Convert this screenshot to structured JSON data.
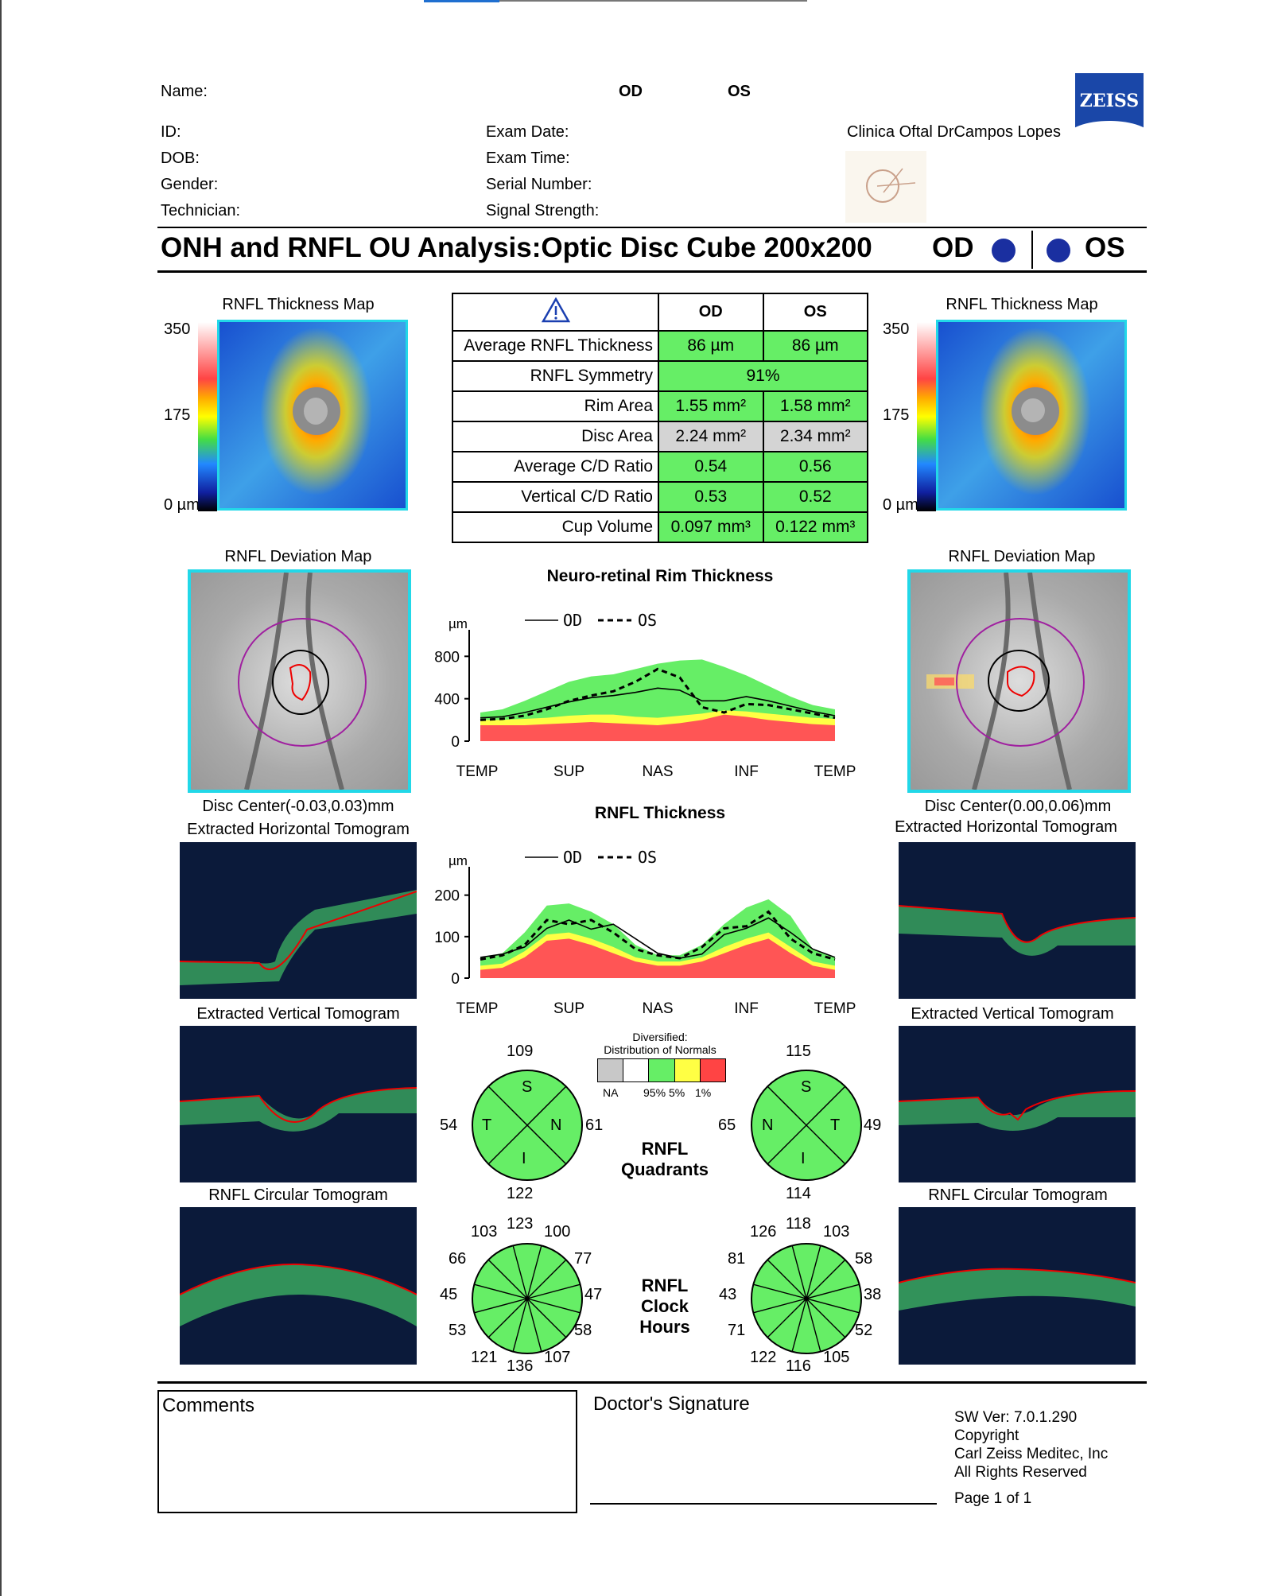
{
  "header": {
    "name_label": "Name:",
    "od_col": "OD",
    "os_col": "OS",
    "id_label": "ID:",
    "dob_label": "DOB:",
    "gender_label": "Gender:",
    "technician_label": "Technician:",
    "exam_date_label": "Exam Date:",
    "exam_time_label": "Exam Time:",
    "serial_label": "Serial Number:",
    "signal_label": "Signal Strength:",
    "clinic": "Clinica Oftal DrCampos Lopes",
    "logo": "ZEISS"
  },
  "title": {
    "text": "ONH and RNFL OU Analysis:Optic Disc Cube 200x200",
    "od": "OD",
    "os": "OS"
  },
  "thickness_map": {
    "title": "RNFL Thickness Map",
    "scale_max": "350",
    "scale_mid": "175",
    "scale_min": "0 µm"
  },
  "summary": {
    "col_od": "OD",
    "col_os": "OS",
    "rows": [
      {
        "label": "Average RNFL Thickness",
        "od": "86 µm",
        "os": "86 µm"
      },
      {
        "label": "RNFL Symmetry",
        "both": "91%"
      },
      {
        "label": "Rim Area",
        "od": "1.55 mm²",
        "os": "1.58 mm²"
      },
      {
        "label": "Disc Area",
        "od": "2.24 mm²",
        "os": "2.34 mm²"
      },
      {
        "label": "Average C/D Ratio",
        "od": "0.54",
        "os": "0.56"
      },
      {
        "label": "Vertical C/D Ratio",
        "od": "0.53",
        "os": "0.52"
      },
      {
        "label": "Cup Volume",
        "od": "0.097 mm³",
        "os": "0.122 mm³"
      }
    ]
  },
  "deviation_map": {
    "title": "RNFL Deviation Map",
    "od_center": "Disc Center(-0.03,0.03)mm",
    "os_center": "Disc Center(0.00,0.06)mm"
  },
  "tomograms": {
    "horizontal": "Extracted Horizontal Tomogram",
    "vertical": "Extracted Vertical Tomogram",
    "circular": "RNFL Circular Tomogram"
  },
  "legend": {
    "od": "OD",
    "os": "OS",
    "unit": "µm"
  },
  "chart_data": [
    {
      "type": "line",
      "title": "Neuro-retinal Rim Thickness",
      "ylabel": "µm",
      "ylim": [
        0,
        900
      ],
      "yticks": [
        0,
        400,
        800
      ],
      "categories": [
        "TEMP",
        "SUP",
        "NAS",
        "INF",
        "TEMP"
      ],
      "x": [
        0,
        1,
        2,
        3,
        4,
        5,
        6,
        7,
        8,
        9,
        10,
        11,
        12,
        13,
        14,
        15,
        16
      ],
      "series": [
        {
          "name": "OD",
          "values": [
            220,
            230,
            270,
            320,
            370,
            410,
            430,
            460,
            500,
            480,
            380,
            380,
            420,
            380,
            330,
            280,
            240
          ]
        },
        {
          "name": "OS",
          "values": [
            200,
            210,
            240,
            300,
            380,
            430,
            470,
            560,
            680,
            600,
            320,
            270,
            350,
            340,
            300,
            260,
            220
          ]
        },
        {
          "name": "red",
          "values": [
            150,
            150,
            150,
            160,
            170,
            180,
            170,
            160,
            150,
            170,
            200,
            250,
            230,
            200,
            180,
            160,
            150
          ]
        },
        {
          "name": "yellow",
          "values": [
            200,
            200,
            210,
            220,
            240,
            250,
            250,
            230,
            220,
            240,
            260,
            290,
            280,
            260,
            240,
            220,
            210
          ]
        },
        {
          "name": "green",
          "values": [
            270,
            300,
            380,
            470,
            560,
            610,
            630,
            680,
            730,
            760,
            770,
            700,
            620,
            520,
            420,
            340,
            300
          ]
        }
      ]
    },
    {
      "type": "line",
      "title": "RNFL Thickness",
      "ylabel": "µm",
      "ylim": [
        0,
        230
      ],
      "yticks": [
        0,
        100,
        200
      ],
      "categories": [
        "TEMP",
        "SUP",
        "NAS",
        "INF",
        "TEMP"
      ],
      "x": [
        0,
        1,
        2,
        3,
        4,
        5,
        6,
        7,
        8,
        9,
        10,
        11,
        12,
        13,
        14,
        15,
        16
      ],
      "series": [
        {
          "name": "OD",
          "values": [
            50,
            58,
            75,
            120,
            140,
            118,
            130,
            95,
            60,
            48,
            58,
            105,
            120,
            145,
            110,
            70,
            50
          ]
        },
        {
          "name": "OS",
          "values": [
            45,
            55,
            80,
            140,
            130,
            140,
            110,
            70,
            55,
            48,
            75,
            120,
            125,
            160,
            95,
            60,
            45
          ]
        },
        {
          "name": "red",
          "values": [
            20,
            25,
            50,
            90,
            95,
            80,
            60,
            40,
            30,
            30,
            40,
            60,
            80,
            95,
            60,
            30,
            20
          ]
        },
        {
          "name": "yellow",
          "values": [
            30,
            35,
            65,
            105,
            110,
            95,
            75,
            50,
            40,
            40,
            50,
            75,
            95,
            110,
            75,
            40,
            30
          ]
        },
        {
          "name": "green",
          "values": [
            50,
            60,
            110,
            175,
            180,
            160,
            130,
            80,
            55,
            55,
            80,
            130,
            170,
            190,
            150,
            70,
            50
          ]
        }
      ]
    }
  ],
  "normals": {
    "title1": "Diversified:",
    "title2": "Distribution of Normals",
    "na": "NA",
    "p95": "95%",
    "p5": "5%",
    "p1": "1%",
    "colors": [
      "#c8c8c8",
      "#ffffff",
      "#66ee66",
      "#ffff44",
      "#ff4444"
    ]
  },
  "quadrants": {
    "label1": "RNFL",
    "label2": "Quadrants",
    "od": {
      "S": "109",
      "T": "54",
      "N": "61",
      "I": "122"
    },
    "os": {
      "S": "115",
      "N": "65",
      "T": "49",
      "I": "114"
    },
    "letters": {
      "s": "S",
      "t": "T",
      "n": "N",
      "i": "I"
    }
  },
  "clock": {
    "label1": "RNFL",
    "label2": "Clock",
    "label3": "Hours",
    "od": {
      "h12": "123",
      "h1": "100",
      "h2": "77",
      "h3": "47",
      "h4": "58",
      "h5": "107",
      "h6": "136",
      "h7": "121",
      "h8": "53",
      "h9": "45",
      "h10": "66",
      "h11": "103"
    },
    "os": {
      "h12": "118",
      "h1": "103",
      "h2": "58",
      "h3": "38",
      "h4": "52",
      "h5": "105",
      "h6": "116",
      "h7": "122",
      "h8": "71",
      "h9": "43",
      "h10": "81",
      "h11": "126"
    }
  },
  "footer": {
    "comments": "Comments",
    "signature": "Doctor's Signature",
    "sw": "SW Ver: 7.0.1.290",
    "copyright": "Copyright",
    "company": "Carl Zeiss Meditec, Inc",
    "rights": "All Rights Reserved",
    "page": "Page 1 of 1"
  }
}
